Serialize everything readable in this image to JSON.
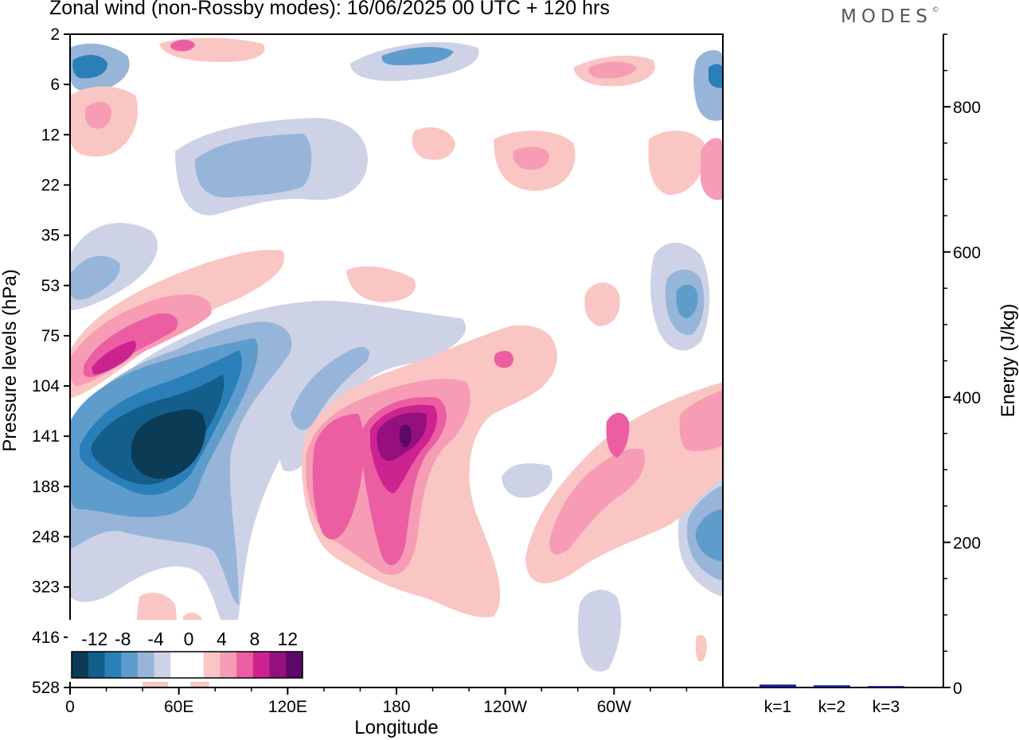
{
  "title": "Zonal wind (non-Rossby modes):  16/06/2025  00 UTC  + 120 hrs",
  "logo_text": "MODES",
  "logo_mark": "©",
  "chart_data": [
    {
      "type": "heatmap",
      "title": "Zonal wind (non-Rossby modes):  16/06/2025  00 UTC  + 120 hrs",
      "xlabel": "Longitude",
      "ylabel": "Pressure levels (hPa)",
      "x_ticks": [
        "0",
        "60E",
        "120E",
        "180",
        "120W",
        "60W"
      ],
      "x_tick_degrees": [
        0,
        60,
        120,
        180,
        240,
        300
      ],
      "xlim": [
        0,
        360
      ],
      "y_ticks": [
        "2",
        "6",
        "12",
        "22",
        "35",
        "53",
        "75",
        "104",
        "141",
        "188",
        "248",
        "323",
        "416",
        "528"
      ],
      "y_scale": "model levels (top 2 hPa, bottom 528 hPa)",
      "colorbar": {
        "labels": [
          "-12",
          "-8",
          "-4",
          "0",
          "4",
          "8",
          "12"
        ],
        "levels": [
          -14,
          -12,
          -10,
          -8,
          -6,
          -4,
          -2,
          0,
          2,
          4,
          6,
          8,
          10,
          12,
          14
        ],
        "colors": [
          "#0b3b55",
          "#135e8a",
          "#2a7fb8",
          "#5e9ccc",
          "#97b5d8",
          "#cdd2e6",
          "#ffffff",
          "#ffffff",
          "#f9c6c3",
          "#f79cb5",
          "#ec5ea2",
          "#cc2390",
          "#95107f",
          "#5c0868"
        ]
      },
      "features": [
        {
          "sign": "negative",
          "peak": -14,
          "lon": 50,
          "level": "141",
          "description": "strong easterly core"
        },
        {
          "sign": "positive",
          "peak": 12,
          "lon": 185,
          "level": "141"
        },
        {
          "sign": "positive",
          "peak": 8,
          "lon": 20,
          "level": "104"
        },
        {
          "sign": "positive",
          "peak": 6,
          "lon": 135,
          "level": "188"
        },
        {
          "sign": "positive",
          "peak": 6,
          "lon": 300,
          "level": "141"
        },
        {
          "sign": "negative",
          "peak": -6,
          "lon": 350,
          "level": "248"
        },
        {
          "sign": "negative",
          "peak": -6,
          "lon": 345,
          "level": "53"
        }
      ]
    },
    {
      "type": "bar",
      "ylabel": "Energy (J/kg)",
      "categories": [
        "k=1",
        "k=2",
        "k=3"
      ],
      "values": [
        4,
        3,
        2
      ],
      "ylim": [
        0,
        900
      ],
      "y_ticks": [
        0,
        200,
        400,
        600,
        800
      ],
      "bar_color": "#1a1a8c"
    }
  ]
}
